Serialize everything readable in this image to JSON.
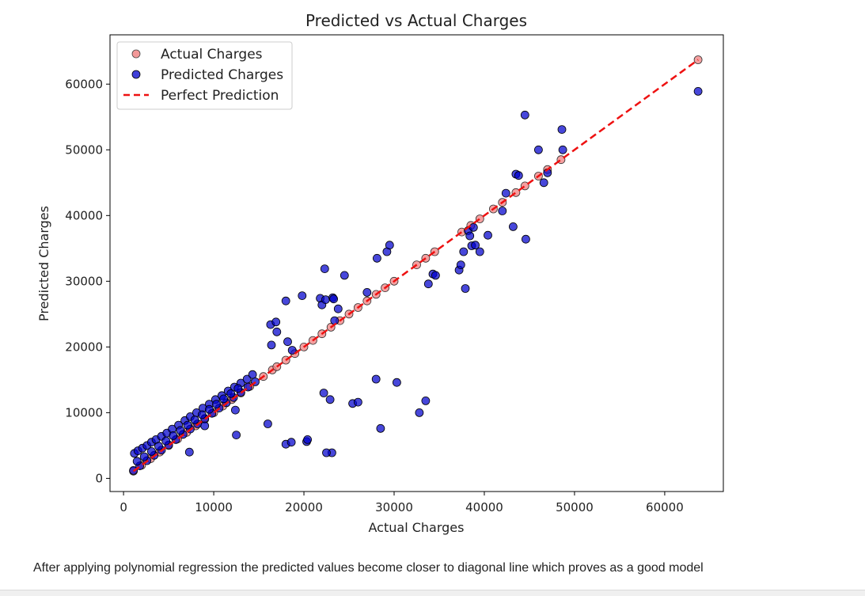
{
  "chart_data": {
    "type": "scatter",
    "title": "Predicted vs Actual Charges",
    "xlabel": "Actual Charges",
    "ylabel": "Predicted Charges",
    "xlim": [
      -1500,
      66500
    ],
    "ylim": [
      -2000,
      67500
    ],
    "xticks": [
      0,
      10000,
      20000,
      30000,
      40000,
      50000,
      60000
    ],
    "yticks": [
      0,
      10000,
      20000,
      30000,
      40000,
      50000,
      60000
    ],
    "grid": false,
    "legend_position": "top-left",
    "legend": [
      "Actual Charges",
      "Predicted Charges",
      "Perfect Prediction"
    ],
    "series": [
      {
        "name": "Actual Charges",
        "kind": "scatter",
        "color": "#f08080",
        "points": [
          [
            1100,
            1100
          ],
          [
            2000,
            2000
          ],
          [
            3000,
            3000
          ],
          [
            4000,
            4000
          ],
          [
            5000,
            5000
          ],
          [
            6000,
            6000
          ],
          [
            7000,
            7000
          ],
          [
            8000,
            8000
          ],
          [
            9000,
            9000
          ],
          [
            10000,
            10000
          ],
          [
            11000,
            11000
          ],
          [
            12000,
            12000
          ],
          [
            13000,
            13000
          ],
          [
            14000,
            14000
          ],
          [
            15500,
            15500
          ],
          [
            16500,
            16500
          ],
          [
            17000,
            17000
          ],
          [
            18000,
            18000
          ],
          [
            19000,
            19000
          ],
          [
            20000,
            20000
          ],
          [
            21000,
            21000
          ],
          [
            22000,
            22000
          ],
          [
            23000,
            23000
          ],
          [
            24000,
            24000
          ],
          [
            25000,
            25000
          ],
          [
            26000,
            26000
          ],
          [
            27000,
            27000
          ],
          [
            28000,
            28000
          ],
          [
            29000,
            29000
          ],
          [
            30000,
            30000
          ],
          [
            32500,
            32500
          ],
          [
            33500,
            33500
          ],
          [
            34500,
            34500
          ],
          [
            37500,
            37500
          ],
          [
            38500,
            38500
          ],
          [
            39500,
            39500
          ],
          [
            41000,
            41000
          ],
          [
            42000,
            42000
          ],
          [
            43500,
            43500
          ],
          [
            44500,
            44500
          ],
          [
            46000,
            46000
          ],
          [
            47000,
            47000
          ],
          [
            48500,
            48500
          ],
          [
            63700,
            63700
          ]
        ]
      },
      {
        "name": "Predicted Charges",
        "kind": "scatter",
        "color": "#0000cc",
        "points": [
          [
            1200,
            3800
          ],
          [
            1600,
            4200
          ],
          [
            2100,
            4600
          ],
          [
            2600,
            5000
          ],
          [
            3100,
            5500
          ],
          [
            3600,
            5900
          ],
          [
            4200,
            6400
          ],
          [
            4800,
            6900
          ],
          [
            5400,
            7500
          ],
          [
            6100,
            8100
          ],
          [
            6800,
            8800
          ],
          [
            7400,
            9400
          ],
          [
            8100,
            10000
          ],
          [
            8800,
            10700
          ],
          [
            9500,
            11300
          ],
          [
            10200,
            12000
          ],
          [
            10900,
            12600
          ],
          [
            11600,
            13300
          ],
          [
            12300,
            13900
          ],
          [
            13000,
            14500
          ],
          [
            13700,
            15100
          ],
          [
            14300,
            15800
          ],
          [
            1100,
            1200
          ],
          [
            1800,
            1900
          ],
          [
            2600,
            2700
          ],
          [
            3400,
            3500
          ],
          [
            4200,
            4300
          ],
          [
            5000,
            5100
          ],
          [
            5800,
            5900
          ],
          [
            6600,
            6700
          ],
          [
            7400,
            7500
          ],
          [
            8200,
            8300
          ],
          [
            9000,
            9100
          ],
          [
            9800,
            9900
          ],
          [
            10600,
            10700
          ],
          [
            11400,
            11500
          ],
          [
            12200,
            12300
          ],
          [
            13000,
            13100
          ],
          [
            13800,
            13900
          ],
          [
            14600,
            14700
          ],
          [
            1500,
            2600
          ],
          [
            2300,
            3300
          ],
          [
            3100,
            4100
          ],
          [
            3900,
            4900
          ],
          [
            4700,
            5700
          ],
          [
            5500,
            6500
          ],
          [
            6300,
            7300
          ],
          [
            7100,
            8100
          ],
          [
            7900,
            8900
          ],
          [
            8700,
            9700
          ],
          [
            9500,
            10500
          ],
          [
            10300,
            11300
          ],
          [
            11100,
            12100
          ],
          [
            11900,
            12900
          ],
          [
            12700,
            13700
          ],
          [
            9000,
            8000
          ],
          [
            7300,
            4000
          ],
          [
            12500,
            6600
          ],
          [
            12400,
            10400
          ],
          [
            16000,
            8300
          ],
          [
            18000,
            5200
          ],
          [
            18600,
            5500
          ],
          [
            20300,
            5600
          ],
          [
            20400,
            5900
          ],
          [
            23100,
            3900
          ],
          [
            22500,
            3900
          ],
          [
            22200,
            13000
          ],
          [
            22900,
            12000
          ],
          [
            25400,
            11400
          ],
          [
            26000,
            11600
          ],
          [
            28000,
            15100
          ],
          [
            30300,
            14600
          ],
          [
            28500,
            7600
          ],
          [
            32800,
            10000
          ],
          [
            33500,
            11800
          ],
          [
            16300,
            23400
          ],
          [
            16400,
            20300
          ],
          [
            16900,
            23800
          ],
          [
            17000,
            22300
          ],
          [
            18000,
            27000
          ],
          [
            18200,
            20800
          ],
          [
            18700,
            19500
          ],
          [
            19800,
            27800
          ],
          [
            21800,
            27400
          ],
          [
            22000,
            26400
          ],
          [
            22400,
            27200
          ],
          [
            22300,
            31900
          ],
          [
            23200,
            27500
          ],
          [
            23300,
            27300
          ],
          [
            23400,
            24000
          ],
          [
            23800,
            25800
          ],
          [
            24500,
            30900
          ],
          [
            27000,
            28300
          ],
          [
            28100,
            33500
          ],
          [
            29200,
            34500
          ],
          [
            29500,
            35500
          ],
          [
            33800,
            29600
          ],
          [
            34300,
            31100
          ],
          [
            34600,
            30900
          ],
          [
            37200,
            31700
          ],
          [
            37400,
            32500
          ],
          [
            37900,
            28900
          ],
          [
            37700,
            34500
          ],
          [
            38200,
            37700
          ],
          [
            38400,
            36900
          ],
          [
            38600,
            35400
          ],
          [
            38800,
            38200
          ],
          [
            39000,
            35500
          ],
          [
            39500,
            34500
          ],
          [
            40400,
            37000
          ],
          [
            42000,
            40700
          ],
          [
            42400,
            43400
          ],
          [
            43200,
            38300
          ],
          [
            43500,
            46300
          ],
          [
            43800,
            46100
          ],
          [
            44500,
            55300
          ],
          [
            44600,
            36400
          ],
          [
            46000,
            50000
          ],
          [
            46600,
            45000
          ],
          [
            47000,
            46500
          ],
          [
            48600,
            53100
          ],
          [
            48700,
            50000
          ],
          [
            63700,
            58900
          ]
        ]
      },
      {
        "name": "Perfect Prediction",
        "kind": "line",
        "style": "dashed",
        "color": "#ee1111",
        "points": [
          [
            1100,
            1100
          ],
          [
            63700,
            63700
          ]
        ]
      }
    ]
  },
  "caption": "After applying polynomial regression the predicted values become closer to diagonal line which proves as a good model"
}
